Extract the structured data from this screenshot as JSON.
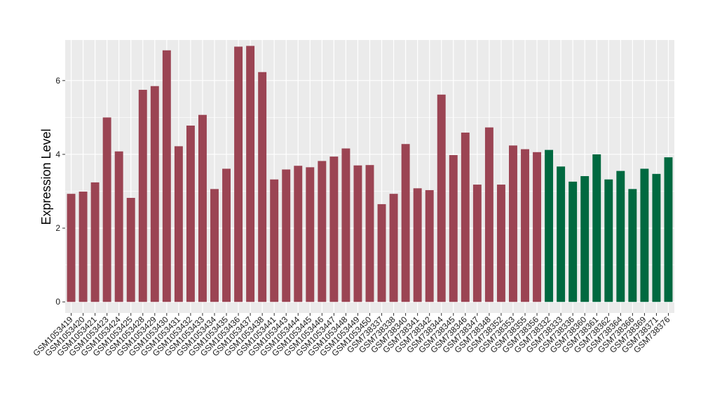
{
  "chart_data": {
    "type": "bar",
    "title": "",
    "xlabel": "",
    "ylabel": "Expression Level",
    "ylim": [
      -0.3,
      7.1
    ],
    "yticks": [
      0,
      2,
      4,
      6
    ],
    "grid": true,
    "legend": "none",
    "colors": {
      "group1": "#9b4453",
      "group2": "#006940",
      "panel": "#ebebeb",
      "grid": "#ffffff"
    },
    "categories": [
      "GSM1053419",
      "GSM1053420",
      "GSM1053421",
      "GSM1053423",
      "GSM1053424",
      "GSM1053425",
      "GSM1053428",
      "GSM1053429",
      "GSM1053430",
      "GSM1053431",
      "GSM1053432",
      "GSM1053433",
      "GSM1053434",
      "GSM1053435",
      "GSM1053436",
      "GSM1053437",
      "GSM1053438",
      "GSM1053441",
      "GSM1053443",
      "GSM1053444",
      "GSM1053445",
      "GSM1053446",
      "GSM1053447",
      "GSM1053448",
      "GSM1053449",
      "GSM1053450",
      "GSM738337",
      "GSM738338",
      "GSM738340",
      "GSM738341",
      "GSM738342",
      "GSM738344",
      "GSM738345",
      "GSM738346",
      "GSM738347",
      "GSM738348",
      "GSM738352",
      "GSM738353",
      "GSM738355",
      "GSM738356",
      "GSM738332",
      "GSM738333",
      "GSM738336",
      "GSM738360",
      "GSM738361",
      "GSM738362",
      "GSM738364",
      "GSM738366",
      "GSM738369",
      "GSM738371",
      "GSM738376"
    ],
    "values": [
      2.93,
      2.99,
      3.24,
      5.0,
      4.08,
      2.82,
      5.75,
      5.85,
      6.82,
      4.22,
      4.78,
      5.07,
      3.06,
      3.61,
      6.92,
      6.94,
      6.23,
      3.32,
      3.59,
      3.69,
      3.65,
      3.82,
      3.94,
      4.16,
      3.7,
      3.71,
      2.65,
      2.93,
      4.28,
      3.08,
      3.03,
      5.62,
      3.98,
      4.59,
      3.18,
      4.73,
      3.18,
      4.24,
      4.14,
      4.06,
      4.12,
      3.67,
      3.26,
      3.41,
      4.0,
      3.32,
      3.55,
      3.06,
      3.61,
      3.47,
      3.92
    ],
    "groups": [
      1,
      1,
      1,
      1,
      1,
      1,
      1,
      1,
      1,
      1,
      1,
      1,
      1,
      1,
      1,
      1,
      1,
      1,
      1,
      1,
      1,
      1,
      1,
      1,
      1,
      1,
      1,
      1,
      1,
      1,
      1,
      1,
      1,
      1,
      1,
      1,
      1,
      1,
      1,
      1,
      2,
      2,
      2,
      2,
      2,
      2,
      2,
      2,
      2,
      2,
      2
    ]
  }
}
